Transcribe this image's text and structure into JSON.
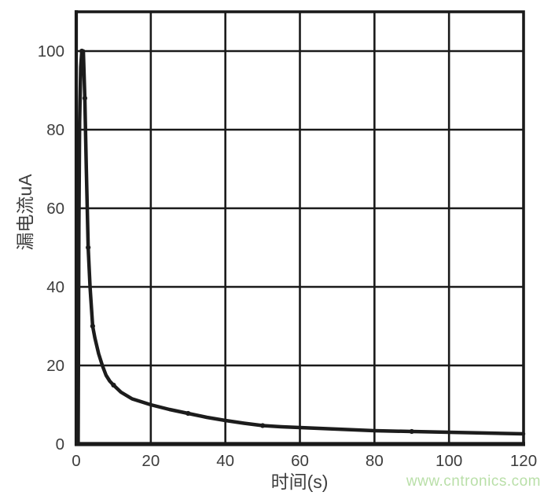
{
  "watermark": {
    "text": "www.cntronics.com",
    "color": "#b9dfa8"
  },
  "colors": {
    "background": "#ffffff",
    "line": "#1c1c1c",
    "grid": "#1a1a1a",
    "frame": "#1a1a1a",
    "tick_text": "#3d3d3d"
  },
  "chart_data": {
    "type": "line",
    "title": "",
    "xlabel": "时间(s)",
    "ylabel": "漏电流uA",
    "xlim": [
      0,
      120
    ],
    "ylim": [
      0,
      110
    ],
    "xticks": [
      0,
      20,
      40,
      60,
      80,
      100,
      120
    ],
    "yticks": [
      0,
      20,
      40,
      60,
      80,
      100
    ],
    "grid": true,
    "legend": false,
    "series": [
      {
        "name": "漏电流",
        "points": [
          [
            0.5,
            0
          ],
          [
            0.6,
            25
          ],
          [
            0.7,
            55
          ],
          [
            0.9,
            82
          ],
          [
            1.2,
            96
          ],
          [
            1.5,
            100
          ],
          [
            1.9,
            100
          ],
          [
            2.3,
            88
          ],
          [
            2.7,
            70
          ],
          [
            3.2,
            50
          ],
          [
            3.7,
            40
          ],
          [
            4.4,
            30
          ],
          [
            5,
            27
          ],
          [
            6,
            23
          ],
          [
            7,
            20
          ],
          [
            8,
            17.5
          ],
          [
            9,
            16
          ],
          [
            10,
            15
          ],
          [
            12,
            13.2
          ],
          [
            15,
            11.5
          ],
          [
            20,
            10
          ],
          [
            25,
            8.8
          ],
          [
            30,
            7.8
          ],
          [
            35,
            6.8
          ],
          [
            40,
            6
          ],
          [
            45,
            5.3
          ],
          [
            50,
            4.7
          ],
          [
            55,
            4.4
          ],
          [
            60,
            4.2
          ],
          [
            70,
            3.8
          ],
          [
            80,
            3.4
          ],
          [
            90,
            3.2
          ],
          [
            100,
            3
          ],
          [
            110,
            2.8
          ],
          [
            120,
            2.6
          ]
        ]
      }
    ],
    "marker_points": [
      [
        1.5,
        100
      ],
      [
        2.3,
        88
      ],
      [
        3.2,
        50
      ],
      [
        4.4,
        30
      ],
      [
        10,
        15
      ],
      [
        30,
        7.8
      ],
      [
        50,
        4.7
      ],
      [
        90,
        3.2
      ]
    ]
  }
}
